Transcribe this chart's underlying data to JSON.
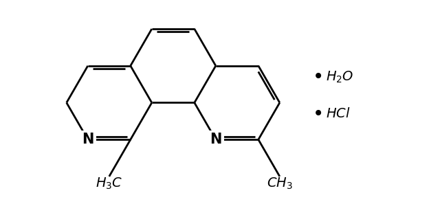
{
  "background_color": "#ffffff",
  "line_color": "#000000",
  "line_width": 2.0,
  "figsize": [
    6.4,
    2.97
  ],
  "dpi": 100
}
